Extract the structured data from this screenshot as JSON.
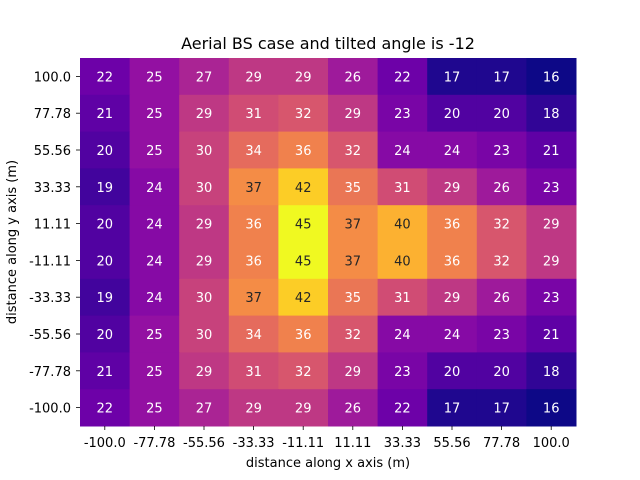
{
  "chart_data": {
    "type": "heatmap",
    "title": "Aerial BS case and tilted angle is -12",
    "xlabel": "distance along x axis (m)",
    "ylabel": "distance along y axis (m)",
    "x_ticks": [
      "-100.0",
      "-77.78",
      "-55.56",
      "-33.33",
      "-11.11",
      "11.11",
      "33.33",
      "55.56",
      "77.78",
      "100.0"
    ],
    "y_ticks": [
      "100.0",
      "77.78",
      "55.56",
      "33.33",
      "11.11",
      "-11.11",
      "-33.33",
      "-55.56",
      "-77.78",
      "-100.0"
    ],
    "values": [
      [
        22,
        25,
        27,
        29,
        29,
        26,
        22,
        17,
        17,
        16
      ],
      [
        21,
        25,
        29,
        31,
        32,
        29,
        23,
        20,
        20,
        18
      ],
      [
        20,
        25,
        30,
        34,
        36,
        32,
        24,
        24,
        23,
        21
      ],
      [
        19,
        24,
        30,
        37,
        42,
        35,
        31,
        29,
        26,
        23
      ],
      [
        20,
        24,
        29,
        36,
        45,
        37,
        40,
        36,
        32,
        29
      ],
      [
        20,
        24,
        29,
        36,
        45,
        37,
        40,
        36,
        32,
        29
      ],
      [
        19,
        24,
        30,
        37,
        42,
        35,
        31,
        29,
        26,
        23
      ],
      [
        20,
        25,
        30,
        34,
        36,
        32,
        24,
        24,
        23,
        21
      ],
      [
        21,
        25,
        29,
        31,
        32,
        29,
        23,
        20,
        20,
        18
      ],
      [
        22,
        25,
        27,
        29,
        29,
        26,
        22,
        17,
        17,
        16
      ]
    ],
    "vmin": 16,
    "vmax": 45,
    "colormap": "plasma",
    "annotations": true,
    "grid": false
  }
}
